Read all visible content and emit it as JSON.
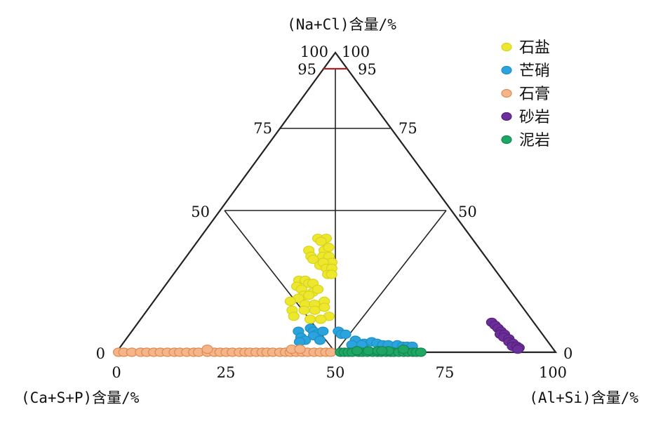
{
  "chart_data": {
    "type": "scatter",
    "subtype": "ternary",
    "title": "",
    "axes": {
      "top_label": "(Na+Cl)含量/%",
      "left_label": "(Ca+S+P)含量/%",
      "right_label": "(Al+Si)含量/%"
    },
    "base_ticks": [
      "0",
      "25",
      "50",
      "75",
      "100"
    ],
    "apex_ticks": [
      "100",
      "100"
    ],
    "left_edge_ticks": [
      "95",
      "75",
      "50",
      "0"
    ],
    "right_edge_ticks": [
      "95",
      "75",
      "50",
      "0"
    ],
    "apex_marker_color": "#b22222",
    "legend": {
      "position": "top-right"
    },
    "series": [
      {
        "name": "石盐",
        "color": "#ede82d",
        "stroke": "#d8d21c",
        "points": [
          [
            43.4,
            38
          ],
          [
            46.5,
            38
          ],
          [
            44.7,
            37
          ],
          [
            46,
            34
          ],
          [
            47.5,
            35
          ],
          [
            45.6,
            32
          ],
          [
            47.7,
            32
          ],
          [
            48.7,
            30
          ],
          [
            40.7,
            34
          ],
          [
            41.7,
            32
          ],
          [
            42.5,
            31
          ],
          [
            44.9,
            29
          ],
          [
            45.9,
            30
          ],
          [
            47,
            28
          ],
          [
            48.7,
            28
          ],
          [
            47.5,
            26
          ],
          [
            48.7,
            26
          ],
          [
            38.9,
            24
          ],
          [
            40.8,
            24
          ],
          [
            42,
            23
          ],
          [
            43.2,
            23
          ],
          [
            43.4,
            20
          ],
          [
            44.8,
            21
          ],
          [
            38.6,
            22
          ],
          [
            40.1,
            21
          ],
          [
            40.9,
            19
          ],
          [
            42.4,
            19
          ],
          [
            39.6,
            18
          ],
          [
            41.6,
            16
          ],
          [
            44.2,
            16
          ],
          [
            46.8,
            17
          ],
          [
            37.5,
            17
          ],
          [
            38.4,
            14
          ],
          [
            39.1,
            12
          ],
          [
            44.4,
            14
          ],
          [
            46.9,
            15
          ],
          [
            48.2,
            12
          ],
          [
            46.1,
            11
          ],
          [
            43.4,
            11
          ],
          [
            41.6,
            14
          ]
        ]
      },
      {
        "name": "芒硝",
        "color": "#2ba4de",
        "stroke": "#1c8fc7",
        "points": [
          [
            40.8,
            7
          ],
          [
            43.7,
            8
          ],
          [
            44.5,
            7
          ],
          [
            45.2,
            6
          ],
          [
            46.8,
            7
          ],
          [
            44.6,
            5.5
          ],
          [
            41.6,
            5
          ],
          [
            42.7,
            4
          ],
          [
            41.4,
            3.5
          ],
          [
            46.2,
            4
          ],
          [
            50.6,
            7
          ],
          [
            51.3,
            6
          ],
          [
            52.3,
            6
          ],
          [
            54.6,
            4
          ],
          [
            56.6,
            3
          ],
          [
            58.4,
            3.5
          ],
          [
            59.6,
            3
          ],
          [
            60.9,
            2.5
          ],
          [
            62.2,
            2.5
          ],
          [
            64.3,
            2.5
          ],
          [
            65.5,
            2
          ],
          [
            66.5,
            2
          ],
          [
            67.7,
            2
          ],
          [
            53.7,
            2.5
          ],
          [
            56,
            2.5
          ]
        ]
      },
      {
        "name": "石膏",
        "color": "#f3b589",
        "stroke": "#e08a4f",
        "points": [
          [
            0.5,
            0
          ],
          [
            1.7,
            0
          ],
          [
            3.5,
            0
          ],
          [
            5.5,
            0
          ],
          [
            6.9,
            0
          ],
          [
            8.5,
            0
          ],
          [
            10,
            0
          ],
          [
            11.6,
            0
          ],
          [
            13.2,
            0
          ],
          [
            14.4,
            0
          ],
          [
            16,
            0
          ],
          [
            17.6,
            0
          ],
          [
            18.7,
            0
          ],
          [
            20.7,
            0
          ],
          [
            22.3,
            0
          ],
          [
            23.6,
            0
          ],
          [
            25,
            0
          ],
          [
            26.4,
            0
          ],
          [
            28,
            0
          ],
          [
            29.3,
            0
          ],
          [
            30.4,
            0
          ],
          [
            31.8,
            0
          ],
          [
            33.2,
            0
          ],
          [
            34.3,
            0
          ],
          [
            35.6,
            0
          ],
          [
            37.2,
            0
          ],
          [
            38.5,
            0
          ],
          [
            39.6,
            0
          ],
          [
            40.9,
            0
          ],
          [
            42.3,
            0
          ],
          [
            43.5,
            0
          ],
          [
            45,
            0
          ],
          [
            46.4,
            0
          ],
          [
            47.7,
            0
          ],
          [
            48.8,
            0
          ],
          [
            20.4,
            1
          ],
          [
            39.8,
            1
          ],
          [
            41.7,
            1
          ]
        ]
      },
      {
        "name": "砂岩",
        "color": "#6c2f9a",
        "stroke": "#55207e",
        "points": [
          [
            89.4,
            10
          ],
          [
            89.8,
            9
          ],
          [
            90.1,
            8
          ],
          [
            90.4,
            7
          ],
          [
            89.8,
            6
          ],
          [
            90.8,
            6
          ],
          [
            90.2,
            5
          ],
          [
            91.2,
            4.5
          ],
          [
            90.8,
            3.5
          ],
          [
            91.5,
            3
          ],
          [
            91,
            2
          ],
          [
            92,
            2
          ],
          [
            92.3,
            1.5
          ],
          [
            91.8,
            1
          ]
        ]
      },
      {
        "name": "泥岩",
        "color": "#1ea664",
        "stroke": "#15864f",
        "points": [
          [
            51,
            0
          ],
          [
            51.9,
            0
          ],
          [
            52.8,
            0
          ],
          [
            53.7,
            0
          ],
          [
            55.1,
            0
          ],
          [
            56,
            0
          ],
          [
            57.1,
            0
          ],
          [
            58.3,
            0
          ],
          [
            59.4,
            0
          ],
          [
            60.3,
            0
          ],
          [
            61.4,
            0
          ],
          [
            62.4,
            0
          ],
          [
            63.2,
            0
          ],
          [
            64.3,
            0
          ],
          [
            65.4,
            0
          ],
          [
            66.4,
            0
          ],
          [
            67.5,
            0
          ],
          [
            68.3,
            0
          ],
          [
            69.3,
            0
          ],
          [
            65.5,
            1
          ],
          [
            54.8,
            0.5
          ],
          [
            57.4,
            0.5
          ],
          [
            59.6,
            0.5
          ],
          [
            62,
            0.5
          ],
          [
            60.5,
            0.5
          ]
        ]
      }
    ]
  }
}
